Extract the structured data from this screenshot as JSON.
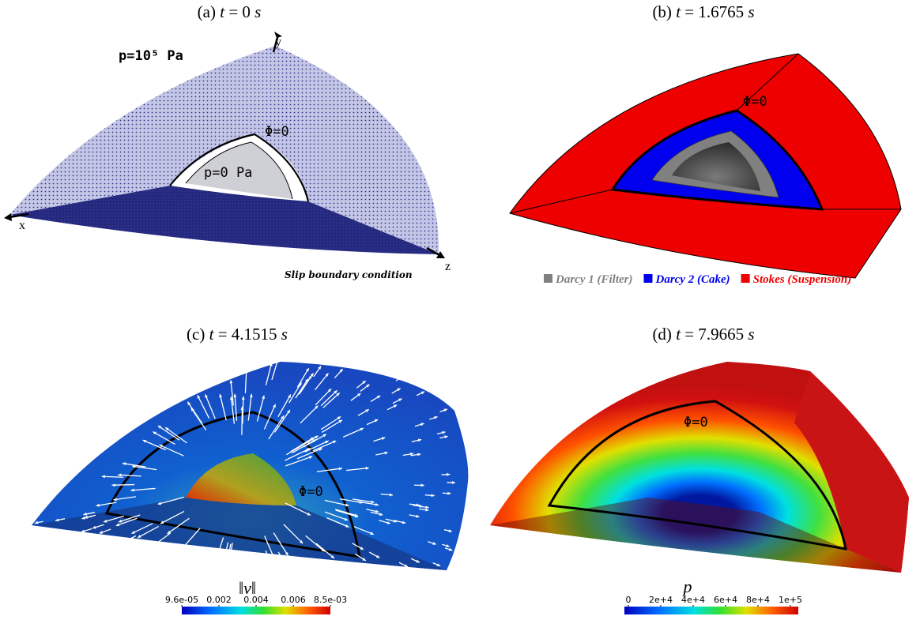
{
  "panels": [
    {
      "caption": {
        "label": "(a)",
        "variable": "t",
        "value": "= 0",
        "unit": "s"
      },
      "annotations": {
        "outer_pressure": "p=10⁵ Pa",
        "axis_y": "y",
        "interface": "Φ=0",
        "inner_pressure": "p=0 Pa",
        "axis_x": "x",
        "axis_z": "z",
        "boundary": "Slip boundary condition"
      }
    },
    {
      "caption": {
        "label": "(b)",
        "variable": "t",
        "value": "= 1.6765",
        "unit": "s"
      },
      "annotations": {
        "interface": "Φ=0"
      },
      "legend": [
        {
          "name": "Darcy 1 (Filter)",
          "color": "#808080"
        },
        {
          "name": "Darcy 2 (Cake)",
          "color": "#0000ee"
        },
        {
          "name": "Stokes (Suspension)",
          "color": "#ee0000"
        }
      ]
    },
    {
      "caption": {
        "label": "(c)",
        "variable": "t",
        "value": "= 4.1515",
        "unit": "s"
      },
      "annotations": {
        "interface": "Φ=0"
      },
      "colorbar": {
        "title": "‖v‖",
        "ticks": [
          "9.6e-05",
          "0.002",
          "0.004",
          "0.006",
          "8.5e-03"
        ]
      }
    },
    {
      "caption": {
        "label": "(d)",
        "variable": "t",
        "value": "= 7.9665",
        "unit": "s"
      },
      "annotations": {
        "interface": "Φ=0"
      },
      "colorbar": {
        "title": "p",
        "ticks": [
          "0",
          "2e+4",
          "4e+4",
          "6e+4",
          "8e+4",
          "1e+5"
        ]
      }
    }
  ]
}
